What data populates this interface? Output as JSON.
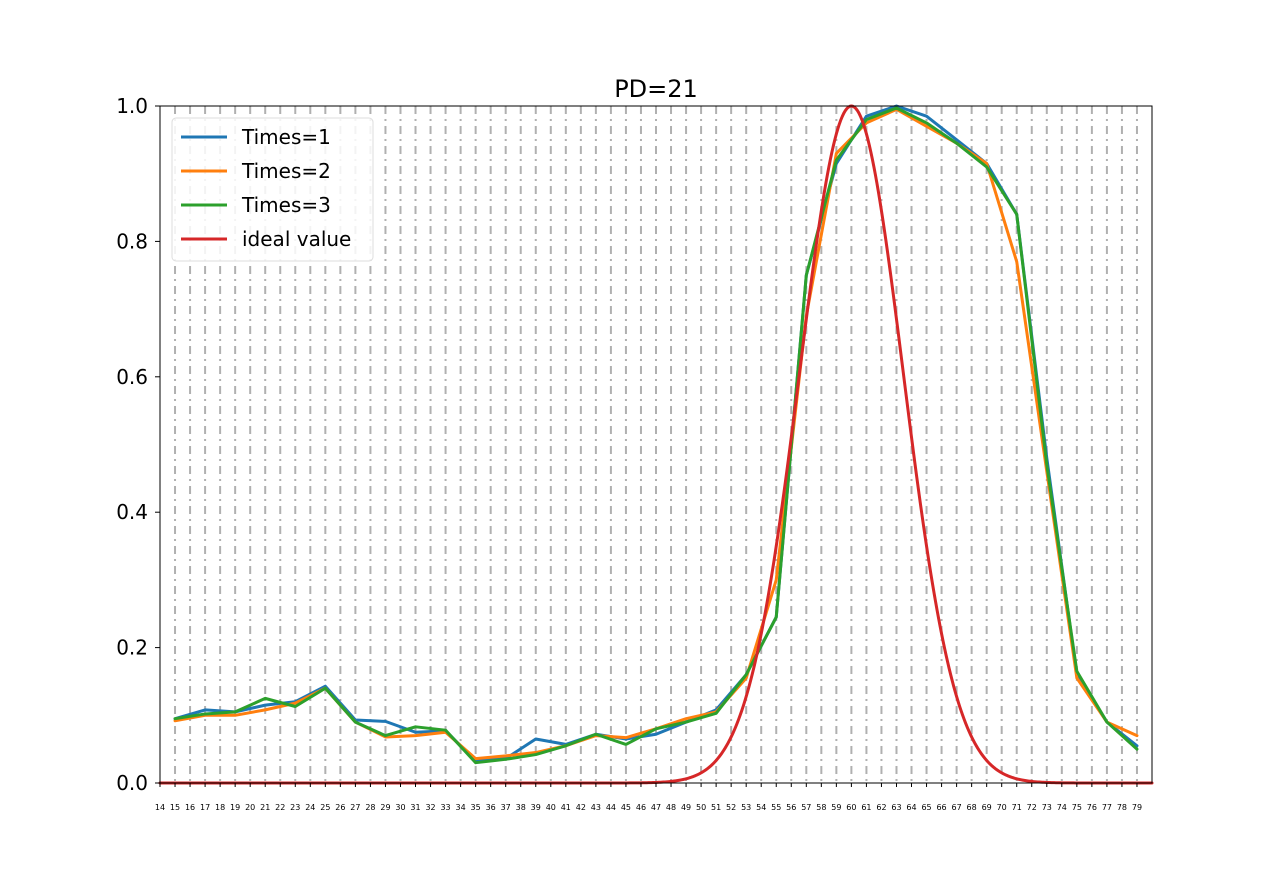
{
  "chart_data": {
    "type": "line",
    "title": "PD=21",
    "xlabel": "",
    "ylabel": "",
    "xlim": [
      14,
      80
    ],
    "ylim": [
      0,
      1.0
    ],
    "yticks": [
      "0.0",
      "0.2",
      "0.4",
      "0.6",
      "0.8",
      "1.0"
    ],
    "x": [
      15,
      17,
      19,
      21,
      23,
      25,
      27,
      29,
      31,
      33,
      35,
      37,
      39,
      41,
      43,
      45,
      47,
      49,
      51,
      53,
      55,
      57,
      59,
      61,
      63,
      65,
      67,
      69,
      71,
      73,
      75,
      77,
      79
    ],
    "grid": "vertical dashed lines at each integer x",
    "legend_position": "top-left",
    "series": [
      {
        "name": "Times=1",
        "color": "#1f77b4",
        "values": [
          0.095,
          0.108,
          0.105,
          0.115,
          0.12,
          0.143,
          0.093,
          0.091,
          0.075,
          0.077,
          0.033,
          0.036,
          0.065,
          0.057,
          0.072,
          0.065,
          0.072,
          0.09,
          0.108,
          0.16,
          0.245,
          0.75,
          0.915,
          0.985,
          1.0,
          0.985,
          0.95,
          0.915,
          0.84,
          0.48,
          0.16,
          0.09,
          0.055
        ]
      },
      {
        "name": "Times=2",
        "color": "#ff7f0e",
        "values": [
          0.092,
          0.1,
          0.1,
          0.108,
          0.118,
          0.14,
          0.09,
          0.068,
          0.07,
          0.075,
          0.036,
          0.04,
          0.045,
          0.055,
          0.07,
          0.067,
          0.08,
          0.095,
          0.105,
          0.155,
          0.3,
          0.69,
          0.93,
          0.975,
          0.995,
          0.97,
          0.945,
          0.915,
          0.77,
          0.46,
          0.155,
          0.09,
          0.07
        ]
      },
      {
        "name": "Times=3",
        "color": "#2ca02c",
        "values": [
          0.095,
          0.102,
          0.105,
          0.125,
          0.113,
          0.14,
          0.09,
          0.07,
          0.083,
          0.078,
          0.03,
          0.035,
          0.042,
          0.055,
          0.072,
          0.057,
          0.08,
          0.09,
          0.103,
          0.16,
          0.245,
          0.75,
          0.92,
          0.98,
          0.997,
          0.975,
          0.945,
          0.91,
          0.84,
          0.47,
          0.165,
          0.09,
          0.05
        ]
      },
      {
        "name": "ideal value",
        "color": "#d62728",
        "function": "gaussian",
        "peak_x": 60,
        "peak_value": 1.0,
        "sigma": 3.45
      }
    ]
  }
}
